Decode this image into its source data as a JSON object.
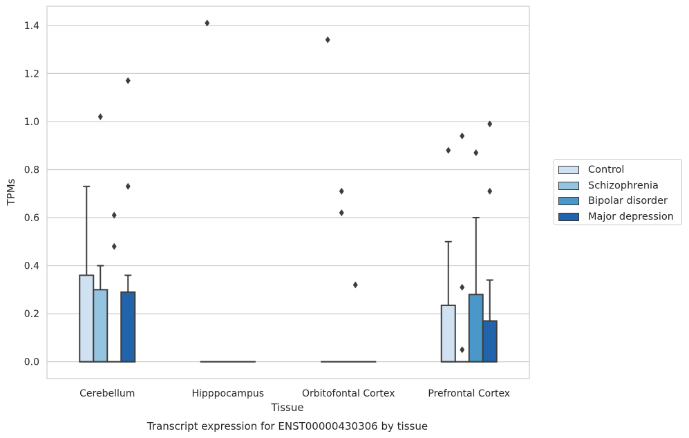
{
  "chart_data": {
    "type": "box",
    "title": "Transcript expression for ENST00000430306 by tissue",
    "xlabel": "Tissue",
    "ylabel": "TPMs",
    "ylim": [
      -0.07,
      1.48
    ],
    "yticks": [
      "0.0",
      "0.2",
      "0.4",
      "0.6",
      "0.8",
      "1.0",
      "1.2",
      "1.4"
    ],
    "categories": [
      "Cerebellum",
      "Hipppocampus",
      "Orbitofontal Cortex",
      "Prefrontal Cortex"
    ],
    "grid": true,
    "legend_position": "right",
    "series": [
      {
        "name": "Control",
        "color": "#d0e1f2",
        "boxes": [
          {
            "q1": 0.0,
            "median": 0.0,
            "q3": 0.36,
            "whisker_low": 0.0,
            "whisker_high": 0.73,
            "outliers": []
          },
          {
            "q1": 0.0,
            "median": 0.0,
            "q3": 0.0,
            "whisker_low": 0.0,
            "whisker_high": 0.0,
            "outliers": [
              1.41
            ]
          },
          {
            "q1": 0.0,
            "median": 0.0,
            "q3": 0.0,
            "whisker_low": 0.0,
            "whisker_high": 0.0,
            "outliers": [
              1.34
            ]
          },
          {
            "q1": 0.0,
            "median": 0.0,
            "q3": 0.235,
            "whisker_low": 0.0,
            "whisker_high": 0.5,
            "outliers": [
              0.88
            ]
          }
        ]
      },
      {
        "name": "Schizophrenia",
        "color": "#94c4df",
        "boxes": [
          {
            "q1": 0.0,
            "median": 0.0,
            "q3": 0.3,
            "whisker_low": 0.0,
            "whisker_high": 0.4,
            "outliers": [
              1.02
            ]
          },
          {
            "q1": 0.0,
            "median": 0.0,
            "q3": 0.0,
            "whisker_low": 0.0,
            "whisker_high": 0.0,
            "outliers": []
          },
          {
            "q1": 0.0,
            "median": 0.0,
            "q3": 0.0,
            "whisker_low": 0.0,
            "whisker_high": 0.0,
            "outliers": [
              0.71,
              0.62
            ]
          },
          {
            "q1": 0.0,
            "median": 0.0,
            "q3": 0.0,
            "whisker_low": 0.0,
            "whisker_high": 0.0,
            "outliers": [
              0.94,
              0.31,
              0.05
            ]
          }
        ]
      },
      {
        "name": "Bipolar disorder",
        "color": "#4a98c9",
        "boxes": [
          {
            "q1": 0.0,
            "median": 0.0,
            "q3": 0.0,
            "whisker_low": 0.0,
            "whisker_high": 0.0,
            "outliers": [
              0.61,
              0.48
            ]
          },
          {
            "q1": 0.0,
            "median": 0.0,
            "q3": 0.0,
            "whisker_low": 0.0,
            "whisker_high": 0.0,
            "outliers": []
          },
          {
            "q1": 0.0,
            "median": 0.0,
            "q3": 0.0,
            "whisker_low": 0.0,
            "whisker_high": 0.0,
            "outliers": [
              0.32
            ]
          },
          {
            "q1": 0.0,
            "median": 0.0,
            "q3": 0.28,
            "whisker_low": 0.0,
            "whisker_high": 0.6,
            "outliers": [
              0.87
            ]
          }
        ]
      },
      {
        "name": "Major depression",
        "color": "#2164ab",
        "boxes": [
          {
            "q1": 0.0,
            "median": 0.0,
            "q3": 0.29,
            "whisker_low": 0.0,
            "whisker_high": 0.36,
            "outliers": [
              1.17,
              0.73
            ]
          },
          {
            "q1": 0.0,
            "median": 0.0,
            "q3": 0.0,
            "whisker_low": 0.0,
            "whisker_high": 0.0,
            "outliers": []
          },
          {
            "q1": 0.0,
            "median": 0.0,
            "q3": 0.0,
            "whisker_low": 0.0,
            "whisker_high": 0.0,
            "outliers": []
          },
          {
            "q1": 0.0,
            "median": 0.0,
            "q3": 0.17,
            "whisker_low": 0.0,
            "whisker_high": 0.34,
            "outliers": [
              0.99,
              0.71
            ]
          }
        ]
      }
    ]
  }
}
